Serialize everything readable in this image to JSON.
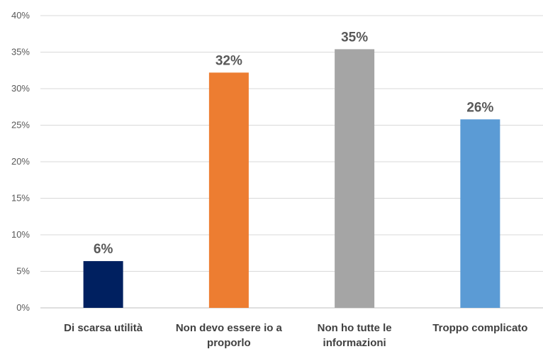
{
  "chart_data": {
    "type": "bar",
    "categories": [
      [
        "Di scarsa utilità"
      ],
      [
        "Non devo essere io a",
        "proporlo"
      ],
      [
        "Non ho tutte le",
        "informazioni"
      ],
      [
        "Troppo complicato"
      ]
    ],
    "values": [
      6.4,
      32.2,
      35.4,
      25.8
    ],
    "data_labels": [
      "6%",
      "32%",
      "35%",
      "26%"
    ],
    "colors": [
      "#002060",
      "#ED7D31",
      "#A5A5A5",
      "#5B9BD5"
    ],
    "yticks": [
      "0%",
      "5%",
      "10%",
      "15%",
      "20%",
      "25%",
      "30%",
      "35%",
      "40%"
    ],
    "ylim": [
      0,
      40
    ],
    "grid": true,
    "legend": "none"
  }
}
